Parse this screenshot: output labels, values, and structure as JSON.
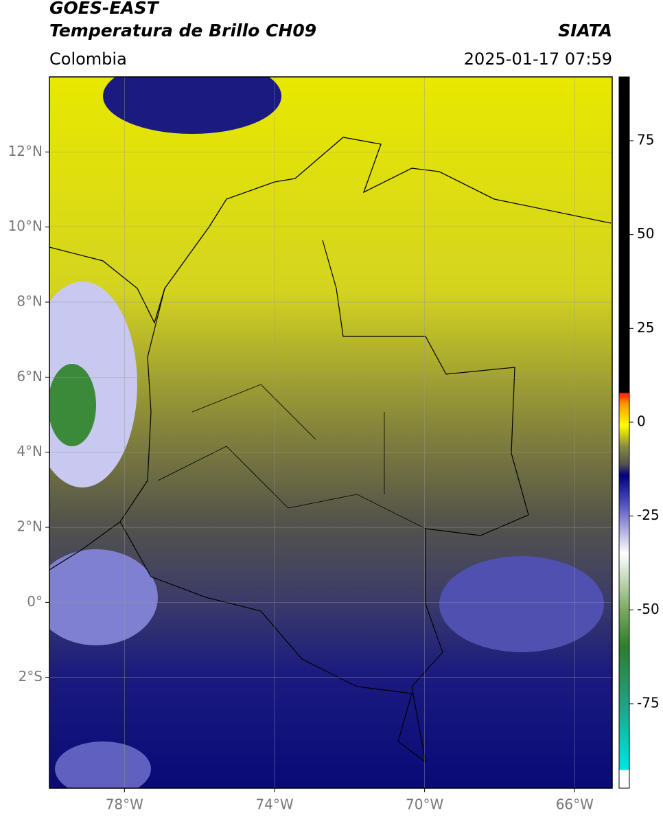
{
  "header": {
    "title": "GOES-EAST",
    "subtitle": "Temperatura de Brillo CH09",
    "source": "SIATA",
    "region": "Colombia",
    "datetime": "2025-01-17 07:59"
  },
  "map": {
    "xlim": [
      -80,
      -65
    ],
    "ylim": [
      -4.95,
      14
    ],
    "xticks": [
      {
        "value": -78,
        "label": "78°W"
      },
      {
        "value": -74,
        "label": "74°W"
      },
      {
        "value": -70,
        "label": "70°W"
      },
      {
        "value": -66,
        "label": "66°W"
      }
    ],
    "yticks": [
      {
        "value": -2,
        "label": "2°S"
      },
      {
        "value": 0,
        "label": "0°"
      },
      {
        "value": 2,
        "label": "2°N"
      },
      {
        "value": 4,
        "label": "4°N"
      },
      {
        "value": 6,
        "label": "6°N"
      },
      {
        "value": 8,
        "label": "8°N"
      },
      {
        "value": 10,
        "label": "10°N"
      },
      {
        "value": 12,
        "label": "12°N"
      }
    ]
  },
  "colorbar": {
    "lim": [
      -97.5,
      92
    ],
    "ticks": [
      -75,
      -50,
      -25,
      0,
      25,
      50,
      75
    ]
  }
}
